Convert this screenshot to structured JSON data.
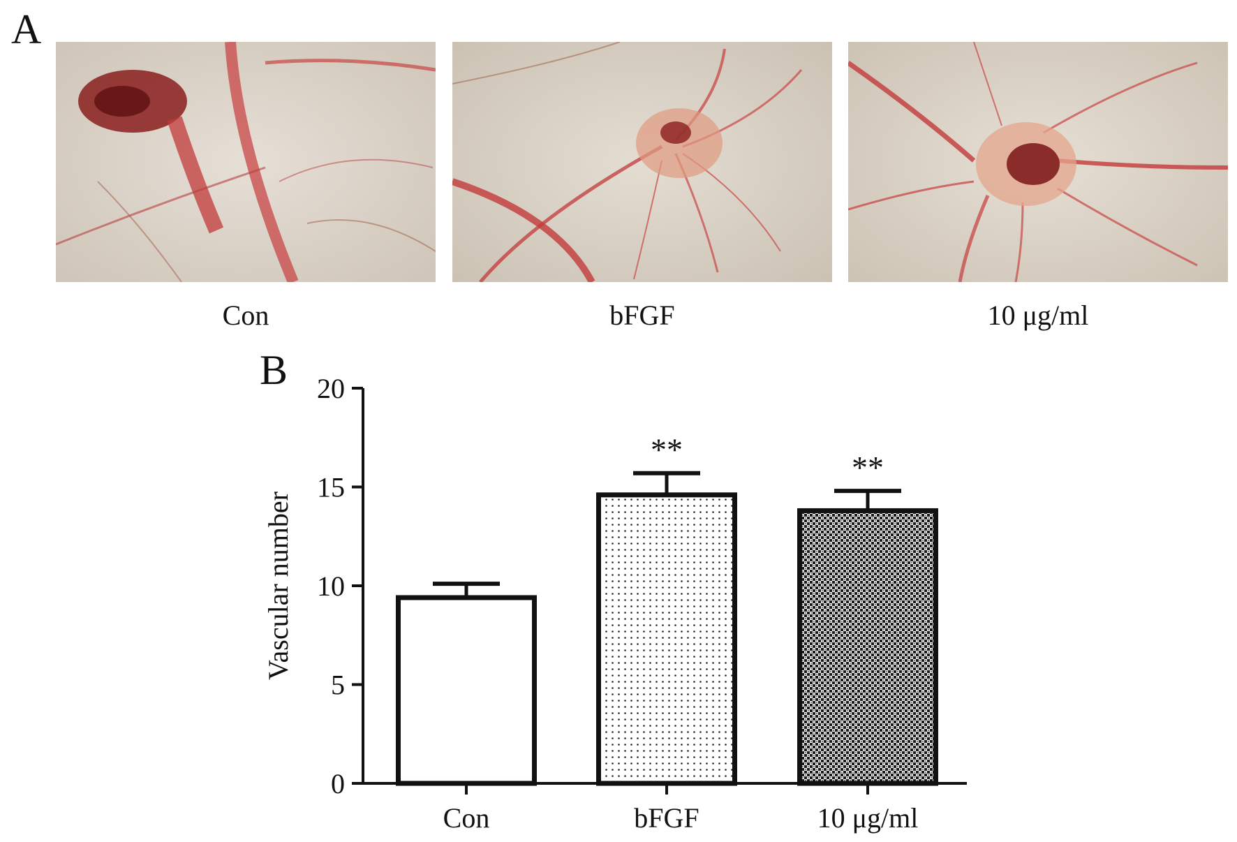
{
  "panel_a": {
    "letter": "A",
    "photos": [
      {
        "label": "Con"
      },
      {
        "label": "bFGF"
      },
      {
        "label": "10 μg/ml"
      }
    ]
  },
  "panel_b": {
    "letter": "B"
  },
  "chart_data": {
    "type": "bar",
    "categories": [
      "Con",
      "bFGF",
      "10 μg/ml"
    ],
    "values": [
      9.4,
      14.6,
      13.8
    ],
    "errors": [
      0.7,
      1.1,
      1.0
    ],
    "annotations": [
      "",
      "**",
      "**"
    ],
    "patterns": [
      "none",
      "dots",
      "dense-checker"
    ],
    "title": "",
    "xlabel": "",
    "ylabel": "Vascular number",
    "ylim": [
      0,
      20
    ],
    "yticks": [
      0,
      5,
      10,
      15,
      20
    ],
    "grid": false,
    "legend": "none",
    "colors": {
      "bar_stroke": "#111111",
      "bar_fill": "#ffffff"
    }
  }
}
